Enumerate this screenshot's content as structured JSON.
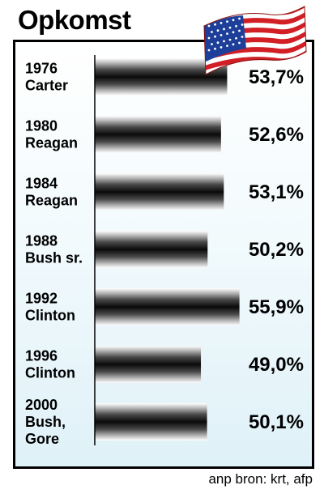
{
  "header": {
    "title": "Opkomst"
  },
  "footer": {
    "source": "anp bron: krt, afp"
  },
  "chart_data": {
    "type": "bar",
    "orientation": "horizontal",
    "title": "Opkomst",
    "categories": [
      [
        "1976",
        "Carter"
      ],
      [
        "1980",
        "Reagan"
      ],
      [
        "1984",
        "Reagan"
      ],
      [
        "1988",
        "Bush sr."
      ],
      [
        "1992",
        "Clinton"
      ],
      [
        "1996",
        "Clinton"
      ],
      [
        "2000",
        "Bush,",
        "Gore"
      ]
    ],
    "values": [
      53.7,
      52.6,
      53.1,
      50.2,
      55.9,
      49.0,
      50.1
    ],
    "value_labels": [
      "53,7%",
      "52,6%",
      "53,1%",
      "50,2%",
      "55,9%",
      "49,0%",
      "50,1%"
    ],
    "unit": "%",
    "xlim": [
      0,
      59
    ],
    "grid": false,
    "legend": "none",
    "bar_color": "#1a1a1a"
  }
}
